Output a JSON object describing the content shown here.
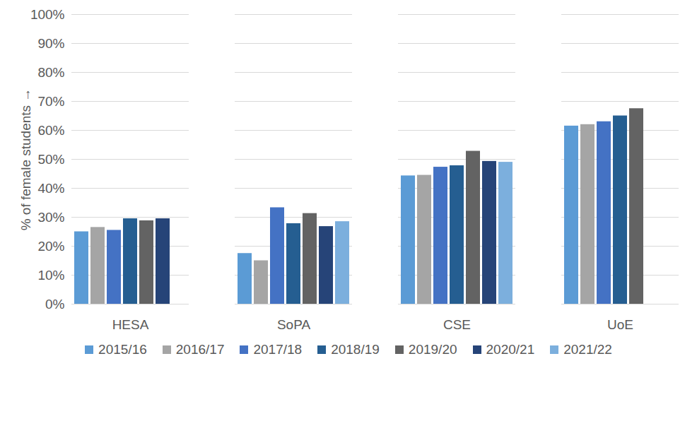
{
  "chart_data": {
    "type": "bar",
    "categories": [
      "HESA",
      "SoPA",
      "CSE",
      "UoE"
    ],
    "series": [
      {
        "name": "2015/16",
        "color": "#5b9bd5",
        "values": [
          25,
          17.5,
          44.3,
          61.5
        ]
      },
      {
        "name": "2016/17",
        "color": "#a5a5a5",
        "values": [
          26.5,
          15,
          44.5,
          62
        ]
      },
      {
        "name": "2017/18",
        "color": "#4472c4",
        "values": [
          25.5,
          33.3,
          47.3,
          63
        ]
      },
      {
        "name": "2018/19",
        "color": "#255e91",
        "values": [
          29.5,
          27.8,
          47.8,
          65
        ]
      },
      {
        "name": "2019/20",
        "color": "#636363",
        "values": [
          28.8,
          31.3,
          52.8,
          67.5
        ]
      },
      {
        "name": "2020/21",
        "color": "#264478",
        "values": [
          29.5,
          26.8,
          49.3,
          null
        ]
      },
      {
        "name": "2021/22",
        "color": "#7cafdd",
        "values": [
          null,
          28.5,
          49,
          null
        ]
      }
    ],
    "y_label": "% of female students",
    "ylim": [
      0,
      100
    ],
    "yticks": [
      {
        "value": 0,
        "label": "0%"
      },
      {
        "value": 10,
        "label": "10%"
      },
      {
        "value": 20,
        "label": "20%"
      },
      {
        "value": 30,
        "label": "30%"
      },
      {
        "value": 40,
        "label": "40%"
      },
      {
        "value": 50,
        "label": "50%"
      },
      {
        "value": 60,
        "label": "60%"
      },
      {
        "value": 70,
        "label": "70%"
      },
      {
        "value": 80,
        "label": "80%"
      },
      {
        "value": 90,
        "label": "90%"
      },
      {
        "value": 100,
        "label": "100%"
      }
    ],
    "grid": true,
    "legend": "bottom"
  }
}
